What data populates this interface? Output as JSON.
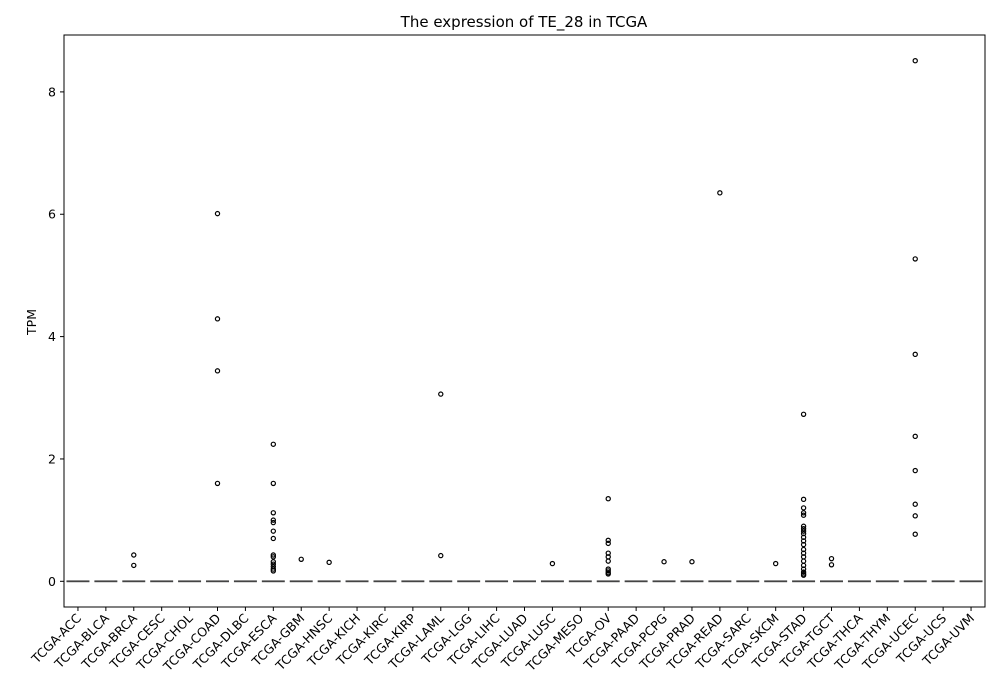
{
  "chart_data": {
    "type": "box",
    "title": "The expression of TE_28 in TCGA",
    "xlabel": "",
    "ylabel": "TPM",
    "ylim": [
      -0.42,
      8.93
    ],
    "yticks": [
      0,
      2,
      4,
      6,
      8
    ],
    "grid": false,
    "categories": [
      "TCGA-ACC",
      "TCGA-BLCA",
      "TCGA-BRCA",
      "TCGA-CESC",
      "TCGA-CHOL",
      "TCGA-COAD",
      "TCGA-DLBC",
      "TCGA-ESCA",
      "TCGA-GBM",
      "TCGA-HNSC",
      "TCGA-KICH",
      "TCGA-KIRC",
      "TCGA-KIRP",
      "TCGA-LAML",
      "TCGA-LGG",
      "TCGA-LIHC",
      "TCGA-LUAD",
      "TCGA-LUSC",
      "TCGA-MESO",
      "TCGA-OV",
      "TCGA-PAAD",
      "TCGA-PCPG",
      "TCGA-PRAD",
      "TCGA-READ",
      "TCGA-SARC",
      "TCGA-SKCM",
      "TCGA-STAD",
      "TCGA-TGCT",
      "TCGA-THCA",
      "TCGA-THYM",
      "TCGA-UCEC",
      "TCGA-UCS",
      "TCGA-UVM"
    ],
    "medians": [
      0,
      0,
      0,
      0,
      0,
      0,
      0,
      0,
      0,
      0,
      0,
      0,
      0,
      0,
      0,
      0,
      0,
      0,
      0,
      0,
      0,
      0,
      0,
      0,
      0,
      0,
      0,
      0,
      0,
      0,
      0,
      0,
      0
    ],
    "outliers": [
      [],
      [],
      [
        0.43,
        0.26
      ],
      [],
      [],
      [
        6.01,
        4.29,
        3.44,
        1.6
      ],
      [],
      [
        2.24,
        1.6,
        1.12,
        1.0,
        0.96,
        0.82,
        0.7,
        0.43,
        0.4,
        0.32,
        0.28,
        0.24,
        0.2,
        0.17
      ],
      [
        0.36
      ],
      [
        0.31
      ],
      [],
      [],
      [],
      [
        3.06,
        0.42
      ],
      [],
      [],
      [],
      [
        0.29
      ],
      [],
      [
        1.35,
        0.67,
        0.62,
        0.46,
        0.4,
        0.33,
        0.2,
        0.17,
        0.14,
        0.12
      ],
      [],
      [
        0.32
      ],
      [
        0.32
      ],
      [
        6.35
      ],
      [],
      [
        0.29
      ],
      [
        2.73,
        1.34,
        1.2,
        1.12,
        1.08,
        0.9,
        0.86,
        0.82,
        0.78,
        0.72,
        0.66,
        0.6,
        0.52,
        0.46,
        0.4,
        0.33,
        0.26,
        0.2,
        0.15,
        0.12,
        0.1
      ],
      [
        0.37,
        0.27
      ],
      [],
      [],
      [
        8.51,
        5.27,
        3.71,
        2.37,
        1.81,
        1.26,
        1.07,
        0.77
      ],
      [],
      []
    ]
  }
}
